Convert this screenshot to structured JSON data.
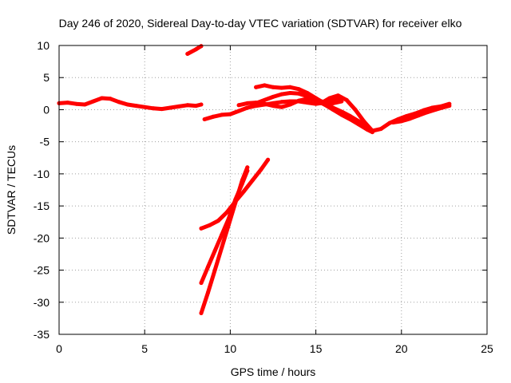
{
  "colors": {
    "series": "#ff0000",
    "grid": "#a0a0a0",
    "axis": "#000000",
    "background": "#ffffff"
  },
  "chart_data": {
    "type": "scatter",
    "title": "Day 246 of 2020, Sidereal Day-to-day VTEC variation (SDTVAR) for receiver elko",
    "xlabel": "GPS time / hours",
    "ylabel": "SDTVAR / TECUs",
    "xlim": [
      0,
      25
    ],
    "ylim": [
      -35,
      10
    ],
    "xticks": [
      0,
      5,
      10,
      15,
      20,
      25
    ],
    "yticks": [
      10,
      5,
      0,
      -5,
      -10,
      -15,
      -20,
      -25,
      -30,
      -35
    ],
    "grid": true,
    "series": [
      {
        "name": "arc-1",
        "points": [
          [
            0,
            1.0
          ],
          [
            0.5,
            1.1
          ],
          [
            1,
            0.9
          ],
          [
            1.5,
            0.8
          ],
          [
            2,
            1.3
          ],
          [
            2.5,
            1.8
          ],
          [
            3,
            1.7
          ],
          [
            3.5,
            1.2
          ],
          [
            4,
            0.8
          ],
          [
            4.5,
            0.6
          ],
          [
            5,
            0.4
          ],
          [
            5.5,
            0.2
          ],
          [
            6,
            0.1
          ],
          [
            6.5,
            0.3
          ],
          [
            7,
            0.5
          ],
          [
            7.5,
            0.7
          ],
          [
            8,
            0.6
          ],
          [
            8.3,
            0.8
          ]
        ]
      },
      {
        "name": "arc-2",
        "points": [
          [
            7.5,
            8.7
          ],
          [
            8.0,
            9.4
          ],
          [
            8.3,
            9.9
          ]
        ]
      },
      {
        "name": "arc-3",
        "points": [
          [
            8.5,
            -1.5
          ],
          [
            9,
            -1.1
          ],
          [
            9.5,
            -0.8
          ],
          [
            10,
            -0.7
          ],
          [
            10.5,
            -0.2
          ],
          [
            11,
            0.3
          ],
          [
            11.5,
            0.6
          ],
          [
            12,
            0.8
          ],
          [
            12.5,
            1.0
          ],
          [
            13,
            1.2
          ],
          [
            13.5,
            1.3
          ],
          [
            14,
            1.3
          ],
          [
            14.5,
            1.1
          ],
          [
            15,
            0.9
          ],
          [
            15.5,
            1.1
          ],
          [
            16,
            1.6
          ],
          [
            16.5,
            1.9
          ]
        ]
      },
      {
        "name": "arc-4",
        "points": [
          [
            11.5,
            1.0
          ],
          [
            12,
            1.5
          ],
          [
            12.5,
            2.0
          ],
          [
            13,
            2.4
          ],
          [
            13.5,
            2.6
          ],
          [
            14,
            2.5
          ],
          [
            14.5,
            2.1
          ],
          [
            15,
            1.5
          ],
          [
            15.5,
            0.8
          ],
          [
            16,
            0.0
          ],
          [
            16.5,
            -0.8
          ],
          [
            17,
            -1.5
          ],
          [
            17.5,
            -2.3
          ],
          [
            18,
            -3.1
          ],
          [
            18.3,
            -3.5
          ]
        ]
      },
      {
        "name": "arc-5",
        "points": [
          [
            11.5,
            3.5
          ],
          [
            12,
            3.8
          ],
          [
            12.5,
            3.5
          ],
          [
            13,
            3.4
          ],
          [
            13.5,
            3.5
          ],
          [
            14,
            3.2
          ],
          [
            14.5,
            2.6
          ],
          [
            15,
            1.8
          ],
          [
            15.5,
            1.0
          ],
          [
            16,
            0.3
          ],
          [
            16.5,
            -0.3
          ],
          [
            17,
            -1.0
          ],
          [
            17.5,
            -1.8
          ],
          [
            18,
            -2.6
          ]
        ]
      },
      {
        "name": "arc-6",
        "points": [
          [
            10.5,
            0.7
          ],
          [
            11,
            1.0
          ],
          [
            11.5,
            1.1
          ],
          [
            12,
            0.9
          ],
          [
            12.5,
            0.6
          ],
          [
            13,
            0.4
          ],
          [
            13.5,
            0.8
          ],
          [
            14,
            1.4
          ],
          [
            14.5,
            1.7
          ],
          [
            15,
            1.5
          ],
          [
            15.5,
            1.2
          ],
          [
            16,
            1.0
          ],
          [
            16.5,
            1.3
          ]
        ]
      },
      {
        "name": "arc-7",
        "points": [
          [
            15.3,
            1.0
          ],
          [
            15.8,
            1.8
          ],
          [
            16.3,
            2.2
          ],
          [
            16.8,
            1.5
          ],
          [
            17.3,
            0.0
          ],
          [
            17.8,
            -1.8
          ],
          [
            18.3,
            -3.3
          ],
          [
            18.8,
            -3.0
          ],
          [
            19.3,
            -2.1
          ],
          [
            19.8,
            -1.5
          ],
          [
            20.3,
            -1.0
          ],
          [
            20.8,
            -0.6
          ],
          [
            21.3,
            -0.1
          ],
          [
            21.8,
            0.3
          ],
          [
            22.3,
            0.5
          ],
          [
            22.8,
            0.9
          ]
        ]
      },
      {
        "name": "arc-8",
        "points": [
          [
            19.5,
            -2.0
          ],
          [
            20,
            -1.8
          ],
          [
            20.5,
            -1.4
          ],
          [
            21,
            -0.9
          ],
          [
            21.5,
            -0.4
          ],
          [
            22,
            0.0
          ],
          [
            22.5,
            0.4
          ],
          [
            22.8,
            0.6
          ]
        ]
      },
      {
        "name": "arc-9",
        "points": [
          [
            8.3,
            -31.7
          ],
          [
            8.7,
            -28.5
          ],
          [
            9.1,
            -25.0
          ],
          [
            9.5,
            -21.5
          ],
          [
            9.9,
            -18.0
          ],
          [
            10.3,
            -14.5
          ],
          [
            10.7,
            -11.0
          ],
          [
            11.0,
            -9.0
          ]
        ]
      },
      {
        "name": "arc-10",
        "points": [
          [
            8.3,
            -27.0
          ],
          [
            8.7,
            -24.5
          ],
          [
            9.1,
            -22.0
          ],
          [
            9.5,
            -19.5
          ],
          [
            9.9,
            -17.0
          ],
          [
            10.3,
            -14.0
          ],
          [
            10.7,
            -11.5
          ],
          [
            11.0,
            -9.5
          ]
        ]
      },
      {
        "name": "arc-11",
        "points": [
          [
            8.3,
            -18.5
          ],
          [
            8.8,
            -18.0
          ],
          [
            9.3,
            -17.3
          ],
          [
            9.8,
            -16.0
          ],
          [
            10.3,
            -14.3
          ],
          [
            10.8,
            -12.7
          ],
          [
            11.3,
            -11.0
          ],
          [
            11.8,
            -9.3
          ],
          [
            12.2,
            -7.8
          ]
        ]
      }
    ]
  }
}
